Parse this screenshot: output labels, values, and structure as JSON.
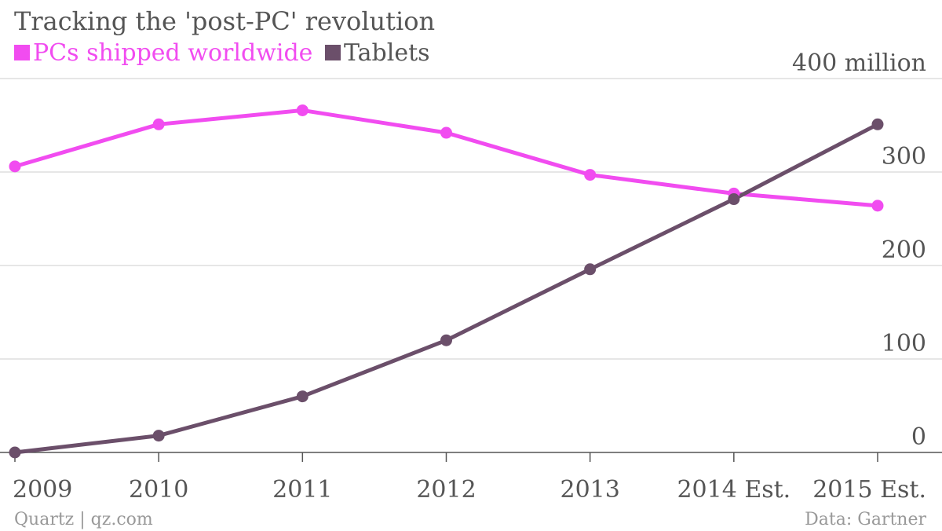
{
  "chart_data": {
    "type": "line",
    "title": "Tracking the 'post-PC' revolution",
    "categories": [
      "2009",
      "2010",
      "2011",
      "2012",
      "2013",
      "2014 Est.",
      "2015 Est."
    ],
    "series": [
      {
        "name": "PCs shipped worldwide",
        "color": "#f14cf0",
        "values": [
          306,
          351,
          366,
          342,
          297,
          277,
          264
        ]
      },
      {
        "name": "Tablets",
        "color": "#6b4f6a",
        "values": [
          0,
          18,
          60,
          120,
          196,
          271,
          351
        ]
      }
    ],
    "y_ticks": [
      {
        "value": 0,
        "label": "0"
      },
      {
        "value": 100,
        "label": "100"
      },
      {
        "value": 200,
        "label": "200"
      },
      {
        "value": 300,
        "label": "300"
      },
      {
        "value": 400,
        "label": "400 million"
      }
    ],
    "ylim": [
      0,
      400
    ],
    "y_axis_position": "right",
    "grid": true,
    "legend_position": "top-left"
  },
  "footer": {
    "source": "Data: Gartner",
    "credit": "Quartz | qz.com"
  }
}
